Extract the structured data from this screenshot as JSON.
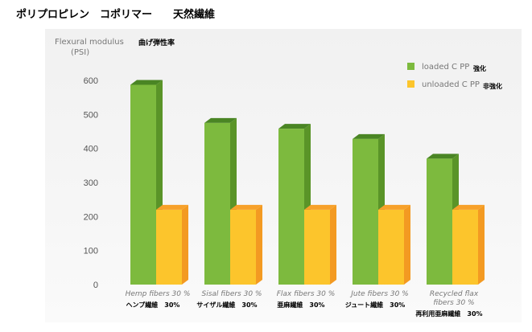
{
  "page": {
    "title": "ポリプロピレン　コポリマー　　天然繊維"
  },
  "chart_data": {
    "type": "bar",
    "title": "",
    "ylabel": "Flexural modulus",
    "ylabel_unit": "(PSI)",
    "ylabel_jp": "曲げ弾性率",
    "ylim": [
      0,
      600
    ],
    "yticks": [
      "0",
      "100",
      "200",
      "300",
      "400",
      "500",
      "600"
    ],
    "grid": false,
    "legend_position": "top-right",
    "categories": [
      "Hemp fibers 30 %",
      "Sisal fibers 30 %",
      "Flax fibers 30 %",
      "Jute fibers 30 %",
      "Recycled flax fibers 30 %"
    ],
    "category_lines": [
      [
        "Hemp fibers 30 %"
      ],
      [
        "Sisal fibers 30 %"
      ],
      [
        "Flax fibers 30 %"
      ],
      [
        "Jute fibers 30 %"
      ],
      [
        "Recycled flax",
        "fibers 30 %"
      ]
    ],
    "categories_jp": [
      "ヘンプ繊維　30%",
      "サイザル繊維　30%",
      "亜麻繊維　30%",
      "ジュート繊維　30%",
      "再利用亜麻繊維　30%"
    ],
    "series": [
      {
        "name": "loaded C PP",
        "name_jp": "強化",
        "values": [
          587,
          475,
          458,
          428,
          370
        ]
      },
      {
        "name": "unloaded C PP",
        "name_jp": "非強化",
        "values": [
          220,
          220,
          220,
          220,
          220
        ]
      }
    ],
    "colors": {
      "loaded_front": "#7dba3e",
      "loaded_side": "#5a9428",
      "loaded_top": "#4a8524",
      "unloaded_front": "#fcc52c",
      "unloaded_side": "#f39a22",
      "unloaded_top": "#f7a12a"
    }
  }
}
